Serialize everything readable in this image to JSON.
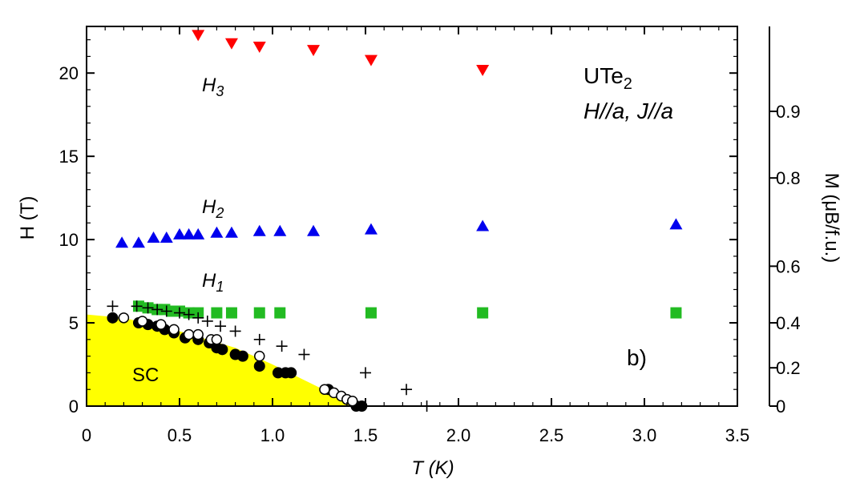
{
  "chart_data": {
    "type": "scatter",
    "xlabel": "T (K)",
    "ylabel": "H (T)",
    "right_label": "M (μB/f.u.)",
    "xlim": [
      0,
      3.5
    ],
    "ylim": [
      0,
      22.8
    ],
    "x_ticks": [
      0,
      0.5,
      1.0,
      1.5,
      2.0,
      2.5,
      3.0,
      3.5
    ],
    "x_tick_labels": [
      "0",
      "0.5",
      "1.0",
      "1.5",
      "2.0",
      "2.5",
      "3.0",
      "3.5"
    ],
    "y_ticks": [
      0,
      5,
      10,
      15,
      20
    ],
    "y_tick_labels": [
      "0",
      "5",
      "10",
      "15",
      "20"
    ],
    "right_ticks": [
      {
        "label": "0",
        "h": 0
      },
      {
        "label": "0.2",
        "h": 2.3
      },
      {
        "label": "0.4",
        "h": 5.0
      },
      {
        "label": "0.6",
        "h": 8.4
      },
      {
        "label": "0.8",
        "h": 13.7
      },
      {
        "label": "0.9",
        "h": 17.7
      }
    ],
    "annotations": {
      "compound": "UTe",
      "compound_sub": "2",
      "field": "H//a, J//a",
      "h3": "H",
      "h3_sub": "3",
      "h2": "H",
      "h2_sub": "2",
      "h1": "H",
      "h1_sub": "1",
      "sc": "SC",
      "panel": "b)"
    },
    "sc_region": [
      [
        0,
        5.5
      ],
      [
        0.2,
        5.3
      ],
      [
        0.5,
        4.5
      ],
      [
        0.8,
        3.5
      ],
      [
        1.0,
        2.5
      ],
      [
        1.2,
        1.4
      ],
      [
        1.4,
        0.3
      ],
      [
        1.47,
        0
      ]
    ],
    "series": [
      {
        "marker": "triangle-down",
        "color": "#ff0000",
        "x": [
          0.6,
          0.78,
          0.93,
          1.22,
          1.53,
          2.13
        ],
        "y": [
          22.3,
          21.8,
          21.6,
          21.4,
          20.8,
          20.2
        ]
      },
      {
        "marker": "triangle-up",
        "color": "#0000ee",
        "x": [
          0.19,
          0.28,
          0.36,
          0.43,
          0.5,
          0.55,
          0.6,
          0.7,
          0.78,
          0.93,
          1.04,
          1.22,
          1.53,
          2.13,
          3.17
        ],
        "y": [
          9.8,
          9.8,
          10.1,
          10.1,
          10.3,
          10.3,
          10.3,
          10.4,
          10.4,
          10.5,
          10.5,
          10.5,
          10.6,
          10.8,
          10.9
        ]
      },
      {
        "marker": "square",
        "color": "#22bb22",
        "x": [
          0.28,
          0.33,
          0.38,
          0.42,
          0.46,
          0.5,
          0.55,
          0.6,
          0.7,
          0.78,
          0.93,
          1.04,
          1.53,
          2.13,
          3.17
        ],
        "y": [
          6.0,
          5.9,
          5.8,
          5.8,
          5.7,
          5.7,
          5.6,
          5.6,
          5.6,
          5.6,
          5.6,
          5.6,
          5.6,
          5.6,
          5.6
        ]
      },
      {
        "marker": "circle-filled",
        "color": "#000000",
        "x": [
          0.14,
          0.28,
          0.33,
          0.38,
          0.42,
          0.47,
          0.53,
          0.6,
          0.66,
          0.7,
          0.73,
          0.8,
          0.84,
          0.93,
          1.03,
          1.07,
          1.1,
          1.3,
          1.45,
          1.48
        ],
        "y": [
          5.3,
          5.0,
          4.9,
          4.8,
          4.6,
          4.4,
          4.1,
          4.0,
          3.8,
          3.5,
          3.4,
          3.1,
          3.0,
          2.4,
          2.0,
          2.0,
          2.0,
          1.0,
          0.0,
          0.0
        ]
      },
      {
        "marker": "circle-open",
        "color": "#000000",
        "x": [
          0.2,
          0.3,
          0.4,
          0.47,
          0.55,
          0.6,
          0.67,
          0.7,
          0.93,
          1.28,
          1.33,
          1.37,
          1.4,
          1.43
        ],
        "y": [
          5.3,
          5.1,
          4.9,
          4.6,
          4.3,
          4.3,
          4.0,
          4.0,
          3.0,
          1.0,
          0.8,
          0.6,
          0.4,
          0.3
        ]
      },
      {
        "marker": "plus",
        "color": "#000000",
        "x": [
          0.14,
          0.27,
          0.33,
          0.38,
          0.43,
          0.5,
          0.55,
          0.6,
          0.65,
          0.72,
          0.8,
          0.93,
          1.05,
          1.17,
          1.5,
          1.72,
          1.83
        ],
        "y": [
          6.0,
          6.0,
          5.9,
          5.8,
          5.7,
          5.6,
          5.5,
          5.3,
          5.1,
          4.8,
          4.5,
          4.0,
          3.6,
          3.1,
          2.0,
          1.0,
          0.0
        ]
      }
    ]
  }
}
